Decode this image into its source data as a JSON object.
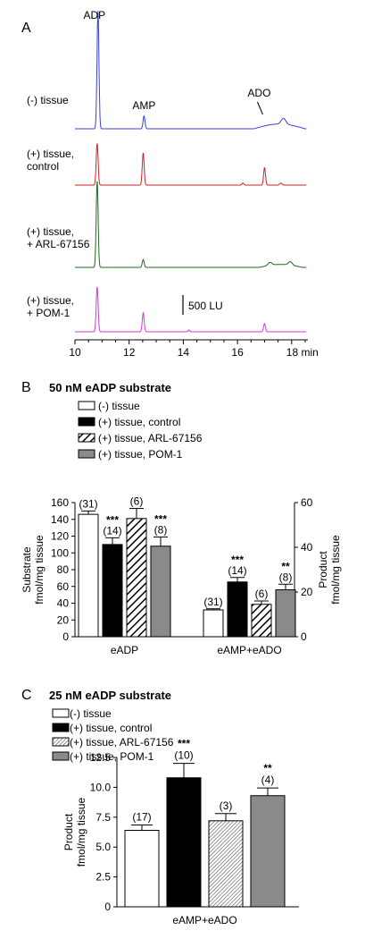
{
  "colors": {
    "tissue_minus": "#3b3fd6",
    "tissue_control": "#cc2222",
    "tissue_arl": "#1d6b1d",
    "tissue_pom": "#d23ad2",
    "bar_control": "#000000",
    "bar_pom": "#8a8a8a"
  },
  "chart_data": [
    {
      "type": "line",
      "panel_label": "A",
      "x_axis": {
        "range": [
          10,
          18.6
        ],
        "ticks": [
          10,
          12,
          14,
          16,
          18
        ],
        "tick_labels": [
          "10",
          "12",
          "14",
          "16",
          "18 min"
        ]
      },
      "scale_bar_label": "500 LU",
      "peak_labels": [
        {
          "text": "ADP",
          "x": 10.85
        },
        {
          "text": "AMP",
          "x": 12.55
        },
        {
          "text": "ADO",
          "x": 17.0
        }
      ],
      "series": [
        {
          "name": "(-) tissue",
          "name_lines": [
            "(-) tissue"
          ],
          "color": "tissue_minus",
          "peaks": [
            {
              "x": 10.85,
              "height": 1.0,
              "w": 0.05
            },
            {
              "x": 12.55,
              "height": 0.11,
              "w": 0.05
            },
            {
              "x": 17.7,
              "height": 0.05,
              "w": 0.12
            }
          ],
          "bumps": [
            {
              "x1": 16.6,
              "x2": 18.5,
              "height": 0.04
            }
          ]
        },
        {
          "name": "(+) tissue, control",
          "name_lines": [
            "(+) tissue,",
            "control"
          ],
          "color": "tissue_control",
          "peaks": [
            {
              "x": 10.82,
              "height": 0.6,
              "w": 0.05
            },
            {
              "x": 12.52,
              "height": 0.46,
              "w": 0.05
            },
            {
              "x": 16.2,
              "height": 0.03,
              "w": 0.05
            },
            {
              "x": 17.0,
              "height": 0.25,
              "w": 0.05
            },
            {
              "x": 17.6,
              "height": 0.03,
              "w": 0.06
            }
          ],
          "bumps": []
        },
        {
          "name": "(+) tissue, + ARL-67156",
          "name_lines": [
            "(+) tissue,",
            "+ ARL-67156"
          ],
          "color": "tissue_arl",
          "peaks": [
            {
              "x": 10.82,
              "height": 0.88,
              "w": 0.05
            },
            {
              "x": 12.52,
              "height": 0.08,
              "w": 0.05
            },
            {
              "x": 17.2,
              "height": 0.03,
              "w": 0.1
            },
            {
              "x": 17.95,
              "height": 0.035,
              "w": 0.1
            }
          ],
          "bumps": [
            {
              "x1": 16.8,
              "x2": 18.4,
              "height": 0.03
            }
          ]
        },
        {
          "name": "(+) tissue, + POM-1",
          "name_lines": [
            "(+) tissue,",
            "+ POM-1"
          ],
          "color": "tissue_pom",
          "peaks": [
            {
              "x": 10.82,
              "height": 0.72,
              "w": 0.05
            },
            {
              "x": 12.52,
              "height": 0.3,
              "w": 0.05
            },
            {
              "x": 14.2,
              "height": 0.03,
              "w": 0.04
            },
            {
              "x": 17.0,
              "height": 0.13,
              "w": 0.05
            }
          ],
          "bumps": []
        }
      ]
    },
    {
      "type": "bar",
      "panel_label": "B",
      "title": "50 nM eADP substrate",
      "legend": [
        "(-) tissue",
        "(+) tissue, control",
        "(+) tissue, ARL-67156",
        "(+) tissue, POM-1"
      ],
      "legend_styles": [
        "white",
        "black",
        "hatch",
        "gray"
      ],
      "ylabel_left": [
        "Substrate",
        "fmol/mg tissue"
      ],
      "ylabel_right": [
        "Product",
        "fmol/mg tissue"
      ],
      "y_left": {
        "range": [
          0,
          160
        ],
        "ticks": [
          0,
          20,
          40,
          60,
          80,
          100,
          120,
          140,
          160
        ]
      },
      "y_right": {
        "range": [
          0,
          60
        ],
        "ticks": [
          0,
          20,
          40,
          60
        ]
      },
      "categories": [
        "eADP",
        "eAMP+eADO"
      ],
      "groups": [
        {
          "category": "eADP",
          "axis": "left",
          "bars": [
            {
              "value": 146,
              "error": 4,
              "n": "(31)",
              "sig": ""
            },
            {
              "value": 110,
              "error": 8,
              "n": "(14)",
              "sig": "***"
            },
            {
              "value": 141,
              "error": 12,
              "n": "(6)",
              "sig": ""
            },
            {
              "value": 108,
              "error": 11,
              "n": "(8)",
              "sig": "***"
            }
          ]
        },
        {
          "category": "eAMP+eADO",
          "axis": "right",
          "bars": [
            {
              "value": 12,
              "error": 0.5,
              "n": "(31)",
              "sig": ""
            },
            {
              "value": 24.5,
              "error": 2,
              "n": "(14)",
              "sig": "***"
            },
            {
              "value": 14.5,
              "error": 1.5,
              "n": "(6)",
              "sig": ""
            },
            {
              "value": 21,
              "error": 2.5,
              "n": "(8)",
              "sig": "**"
            }
          ]
        }
      ]
    },
    {
      "type": "bar",
      "panel_label": "C",
      "title": "25 nM eADP substrate",
      "legend": [
        "(-) tissue",
        "(+) tissue, control",
        "(+) tissue, ARL-67156",
        "(+) tissue, POM-1"
      ],
      "legend_styles": [
        "white",
        "black",
        "hatch",
        "gray"
      ],
      "ylabel": [
        "Product",
        "fmol/mg tissue"
      ],
      "y": {
        "range": [
          0,
          12.5
        ],
        "ticks": [
          0,
          2.5,
          5.0,
          7.5,
          10.0,
          12.5
        ],
        "tick_labels": [
          "0",
          "2.5",
          "5.0",
          "7.5",
          "10.0",
          "12.5"
        ]
      },
      "categories": [
        "eAMP+eADO"
      ],
      "bars": [
        {
          "value": 6.4,
          "error": 0.45,
          "n": "(17)",
          "sig": ""
        },
        {
          "value": 10.8,
          "error": 1.2,
          "n": "(10)",
          "sig": "***"
        },
        {
          "value": 7.2,
          "error": 0.6,
          "n": "(3)",
          "sig": ""
        },
        {
          "value": 9.3,
          "error": 0.65,
          "n": "(4)",
          "sig": "**"
        }
      ]
    }
  ]
}
